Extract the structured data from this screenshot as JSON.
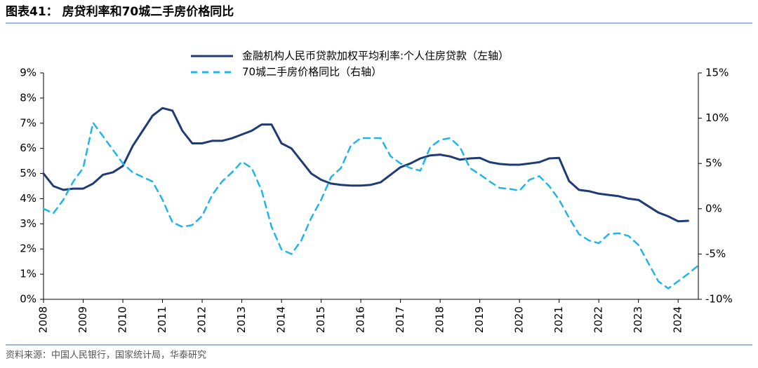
{
  "chart_data": {
    "type": "line",
    "title": "图表41： 房贷利率和70城二手房价格同比",
    "source": "资料来源：中国人民银行，国家统计局，华泰研究",
    "legend": "top",
    "xlim": [
      2008,
      2024.51
    ],
    "xticks": [
      2008,
      2009,
      2010,
      2011,
      2012,
      2013,
      2014,
      2015,
      2016,
      2017,
      2018,
      2019,
      2020,
      2021,
      2022,
      2023,
      2024
    ],
    "ylim": [
      0,
      9
    ],
    "yticks": [
      {
        "value": 0,
        "label": "0%"
      },
      {
        "value": 1,
        "label": "1%"
      },
      {
        "value": 2,
        "label": "2%"
      },
      {
        "value": 3,
        "label": "3%"
      },
      {
        "value": 4,
        "label": "4%"
      },
      {
        "value": 5,
        "label": "5%"
      },
      {
        "value": 6,
        "label": "6%"
      },
      {
        "value": 7,
        "label": "7%"
      },
      {
        "value": 8,
        "label": "8%"
      },
      {
        "value": 9,
        "label": "9%"
      }
    ],
    "y2lim": [
      -10,
      15
    ],
    "y2ticks": [
      {
        "value": -10,
        "label": "-10%"
      },
      {
        "value": -5,
        "label": "-5%"
      },
      {
        "value": 0,
        "label": "0%"
      },
      {
        "value": 5,
        "label": "5%"
      },
      {
        "value": 10,
        "label": "10%"
      },
      {
        "value": 15,
        "label": "15%"
      }
    ],
    "series": [
      {
        "name": "金融机构人民币贷款加权平均利率:个人住房贷款（左轴）",
        "color": "#1f3b73",
        "dash": false,
        "axis": "y",
        "x": [
          2008,
          2008.25,
          2008.5,
          2008.75,
          2009,
          2009.25,
          2009.5,
          2009.75,
          2010,
          2010.25,
          2010.5,
          2010.75,
          2011,
          2011.25,
          2011.5,
          2011.75,
          2012,
          2012.25,
          2012.5,
          2012.75,
          2013,
          2013.25,
          2013.5,
          2013.75,
          2014,
          2014.25,
          2014.5,
          2014.75,
          2015,
          2015.25,
          2015.5,
          2015.75,
          2016,
          2016.25,
          2016.5,
          2016.75,
          2017,
          2017.25,
          2017.5,
          2017.75,
          2018,
          2018.25,
          2018.5,
          2018.75,
          2019,
          2019.25,
          2019.5,
          2019.75,
          2020,
          2020.25,
          2020.5,
          2020.75,
          2021,
          2021.25,
          2021.5,
          2021.75,
          2022,
          2022.25,
          2022.5,
          2022.75,
          2023,
          2023.25,
          2023.5,
          2023.75,
          2024,
          2024.25
        ],
        "values": [
          5.0,
          4.5,
          4.35,
          4.4,
          4.4,
          4.6,
          4.95,
          5.05,
          5.3,
          6.1,
          6.7,
          7.3,
          7.6,
          7.5,
          6.7,
          6.2,
          6.2,
          6.3,
          6.3,
          6.4,
          6.55,
          6.7,
          6.95,
          6.95,
          6.2,
          6.0,
          5.5,
          5.0,
          4.75,
          4.6,
          4.55,
          4.52,
          4.52,
          4.55,
          4.65,
          4.95,
          5.25,
          5.4,
          5.6,
          5.72,
          5.75,
          5.68,
          5.55,
          5.6,
          5.62,
          5.45,
          5.38,
          5.35,
          5.35,
          5.4,
          5.45,
          5.6,
          5.62,
          4.7,
          4.35,
          4.3,
          4.2,
          4.15,
          4.1,
          4.0,
          3.95,
          3.7,
          3.45,
          3.3,
          3.1,
          3.12
        ]
      },
      {
        "name": "70城二手房价格同比（右轴）",
        "color": "#1fb5e8",
        "dash": true,
        "axis": "y2",
        "x": [
          2008,
          2008.25,
          2008.5,
          2008.75,
          2009,
          2009.25,
          2009.5,
          2009.75,
          2010,
          2010.25,
          2010.5,
          2010.75,
          2011,
          2011.25,
          2011.5,
          2011.75,
          2012,
          2012.25,
          2012.5,
          2012.75,
          2013,
          2013.25,
          2013.5,
          2013.75,
          2014,
          2014.25,
          2014.5,
          2014.75,
          2015,
          2015.25,
          2015.5,
          2015.75,
          2016,
          2016.25,
          2016.5,
          2016.75,
          2017,
          2017.25,
          2017.5,
          2017.75,
          2018,
          2018.25,
          2018.5,
          2018.75,
          2019,
          2019.25,
          2019.5,
          2019.75,
          2020,
          2020.25,
          2020.5,
          2020.75,
          2021,
          2021.25,
          2021.5,
          2021.75,
          2022,
          2022.25,
          2022.5,
          2022.75,
          2023,
          2023.25,
          2023.5,
          2023.75,
          2024,
          2024.25,
          2024.5
        ],
        "values": [
          0,
          -0.5,
          1.0,
          3.0,
          4.5,
          9.5,
          8.0,
          6.5,
          5.0,
          4.0,
          3.5,
          3.0,
          1.0,
          -1.5,
          -2.0,
          -1.8,
          -0.8,
          1.5,
          3.0,
          4.0,
          5.2,
          4.5,
          2.0,
          -2.0,
          -4.5,
          -5.0,
          -3.5,
          -1.0,
          1.0,
          3.5,
          4.5,
          7.0,
          7.8,
          7.8,
          7.8,
          5.8,
          5.0,
          4.5,
          4.2,
          6.8,
          7.6,
          7.8,
          6.8,
          4.5,
          3.8,
          3.0,
          2.3,
          2.2,
          2.0,
          3.2,
          3.6,
          2.5,
          1.0,
          -1.0,
          -2.8,
          -3.5,
          -3.8,
          -2.8,
          -2.7,
          -3.0,
          -4.0,
          -6.0,
          -8.0,
          -8.8,
          -8.0,
          -7.2,
          -6.3
        ]
      }
    ]
  }
}
